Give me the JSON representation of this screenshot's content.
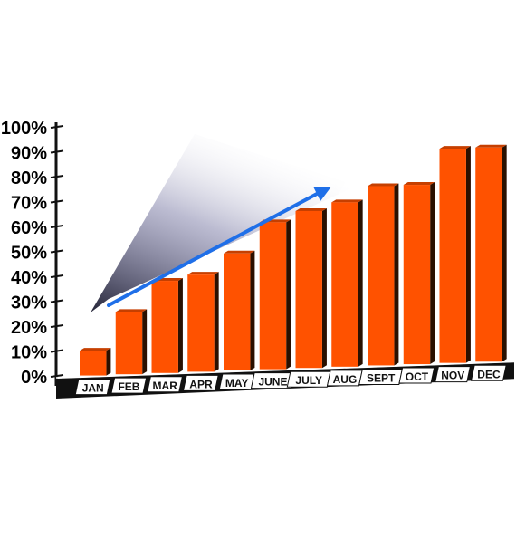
{
  "chart_data": {
    "type": "bar",
    "categories": [
      "JAN",
      "FEB",
      "MAR",
      "APR",
      "MAY",
      "JUNE",
      "JULY",
      "AUG",
      "SEPT",
      "OCT",
      "NOV",
      "DEC"
    ],
    "values": [
      10,
      25,
      37,
      39,
      47,
      59,
      63,
      66,
      72,
      72,
      86,
      86
    ],
    "y_ticks": [
      "0%",
      "10%",
      "20%",
      "30%",
      "40%",
      "50%",
      "60%",
      "70%",
      "80%",
      "90%",
      "100%"
    ],
    "ylim": [
      0,
      100
    ],
    "title": "",
    "xlabel": "",
    "ylabel": "",
    "grid": false,
    "trend_arrow": true,
    "colors": {
      "bar_front": "#ff5200",
      "bar_side": "#2a1000",
      "axis": "#111111",
      "arrow": "#1f6fe8",
      "shade": "#2a2a4a"
    }
  }
}
